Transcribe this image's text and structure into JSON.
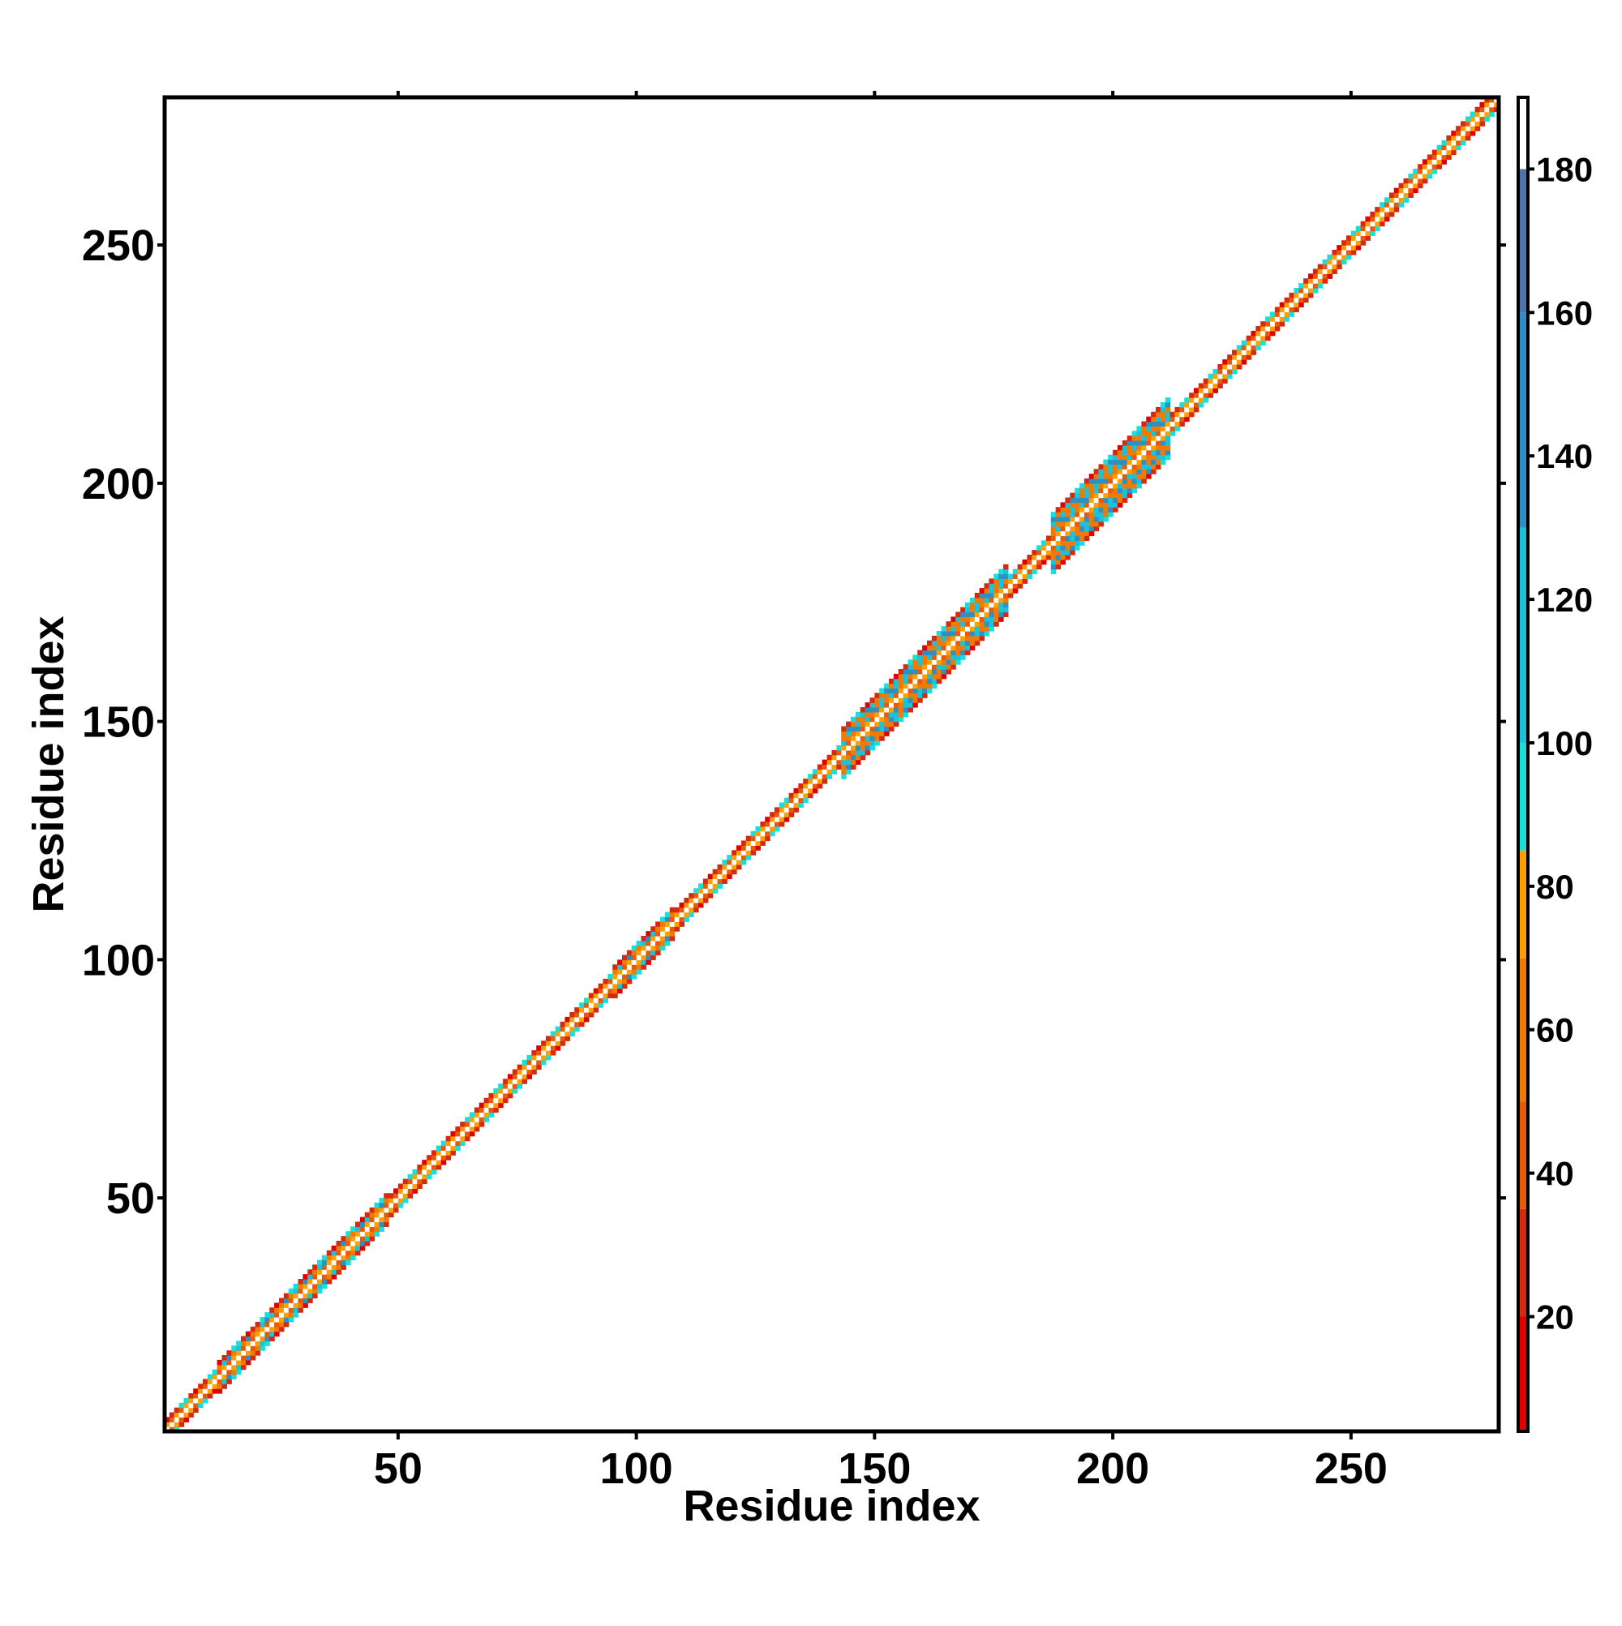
{
  "chart_data": {
    "type": "heatmap",
    "title": "",
    "xlabel": "Residue index",
    "ylabel": "Residue index",
    "xlim": [
      1,
      281
    ],
    "ylim": [
      1,
      281
    ],
    "x_ticks": [
      50,
      100,
      150,
      200,
      250
    ],
    "y_ticks": [
      50,
      100,
      150,
      200,
      250
    ],
    "colorbar": {
      "range": [
        4,
        190
      ],
      "ticks": [
        20,
        40,
        60,
        80,
        100,
        120,
        140,
        160,
        180
      ],
      "segments": [
        {
          "from": 4,
          "to": 20,
          "color": "#e00000"
        },
        {
          "from": 20,
          "to": 35,
          "color": "#d42a10"
        },
        {
          "from": 35,
          "to": 50,
          "color": "#e65a0a"
        },
        {
          "from": 50,
          "to": 70,
          "color": "#f07a06"
        },
        {
          "from": 70,
          "to": 85,
          "color": "#ffa000"
        },
        {
          "from": 85,
          "to": 100,
          "color": "#19dede"
        },
        {
          "from": 100,
          "to": 130,
          "color": "#1cc3d8"
        },
        {
          "from": 130,
          "to": 160,
          "color": "#2f8fc2"
        },
        {
          "from": 160,
          "to": 180,
          "color": "#4e73ad"
        },
        {
          "from": 180,
          "to": 190,
          "color": "#ffffff"
        }
      ]
    },
    "band_profile": [
      {
        "range": [
          1,
          12
        ],
        "halfwidth": 2
      },
      {
        "range": [
          12,
          48
        ],
        "halfwidth": 3
      },
      {
        "range": [
          48,
          95
        ],
        "halfwidth": 2
      },
      {
        "range": [
          95,
          108
        ],
        "halfwidth": 3
      },
      {
        "range": [
          108,
          143
        ],
        "halfwidth": 2
      },
      {
        "range": [
          143,
          178
        ],
        "halfwidth": 5
      },
      {
        "range": [
          178,
          187
        ],
        "halfwidth": 2
      },
      {
        "range": [
          187,
          212
        ],
        "halfwidth": 6
      },
      {
        "range": [
          212,
          281
        ],
        "halfwidth": 2
      }
    ]
  }
}
